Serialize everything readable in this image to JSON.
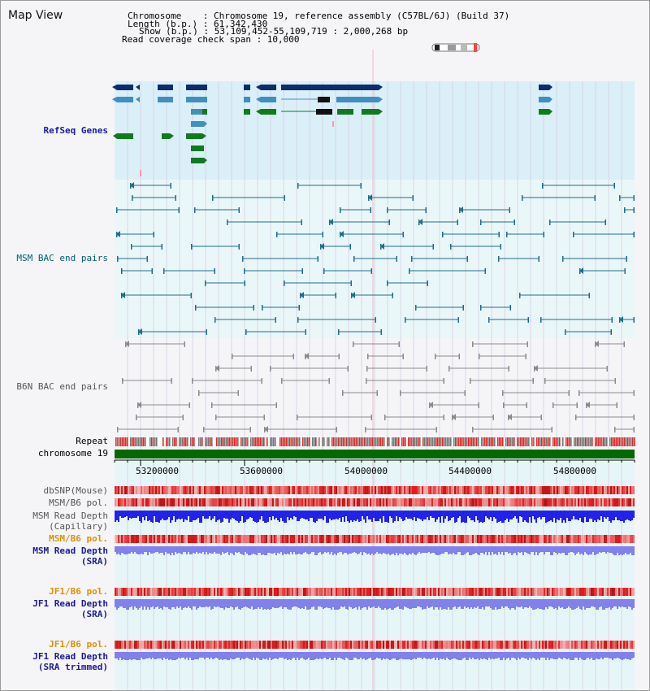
{
  "view_title": "Map View",
  "header": {
    "chromosome_row": "Chromosome    : Chromosome 19, reference assembly (C57BL/6J) (Build 37)",
    "length_row": "Length (b.p.) : 61,342,430",
    "show_row": "Show (b.p.) : 53,109,452-55,109,719 : 2,000,268 bp",
    "coverage_row": "Read coverage check span : 10,000"
  },
  "tracks": {
    "refseq": "RefSeq Genes",
    "msm_bac": "MSM BAC end pairs",
    "b6n_bac": "B6N BAC end pairs",
    "repeat": "Repeat",
    "chromosome": "chromosome 19",
    "dbsnp": "dbSNP(Mouse)",
    "msm_pol_1": "MSM/B6 pol.",
    "msm_depth_cap_1": "MSM Read Depth",
    "msm_depth_cap_2": "(Capillary)",
    "msm_pol_2": "MSM/B6 pol.",
    "msm_depth_sra_1": "MSM Read Depth",
    "msm_depth_sra_2": "(SRA)",
    "jf1_pol_1": "JF1/B6 pol.",
    "jf1_depth_sra_1": "JF1 Read Depth",
    "jf1_depth_sra_2": "(SRA)",
    "jf1_pol_2": "JF1/B6 pol.",
    "jf1_depth_trim_1": "JF1 Read Depth",
    "jf1_depth_trim_2": "(SRA trimmed)"
  },
  "axis_ticks": [
    "53200000",
    "53600000",
    "54000000",
    "54400000",
    "54800000"
  ],
  "colors": {
    "refseq_dark": "#0b2d6b",
    "refseq_mid": "#3f8fbf",
    "refseq_green": "#0f7a1e",
    "msm_line": "#1e6d8a",
    "b6n_line": "#8a8a8a",
    "chromosome_bar": "#056805",
    "pol_red": "#e23a3a",
    "depth_blue": "#2222ee",
    "depth_lilac": "#8080ee"
  }
}
